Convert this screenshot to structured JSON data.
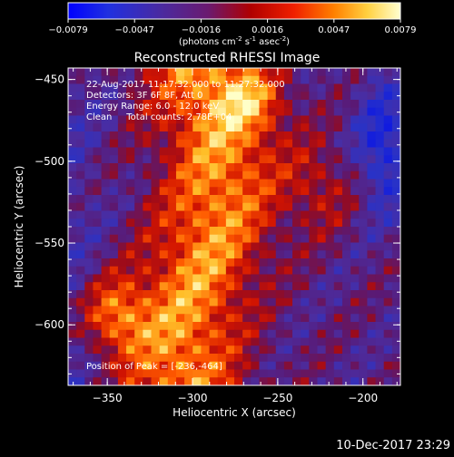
{
  "colorbar": {
    "ticks": [
      "-0.0079",
      "-0.0047",
      "-0.0016",
      "0.0016",
      "0.0047",
      "0.0079"
    ],
    "unit_main": "(photons cm",
    "unit_sup1": "-2",
    "unit_mid1": " s",
    "unit_sup2": "-1",
    "unit_mid2": " asec",
    "unit_sup3": "-2",
    "unit_end": ")"
  },
  "info": {
    "time": "22-Aug-2017 11:17:32.000 to 11:27:32.000",
    "detectors": "Detectors: 3F 6F 8F, Att 0",
    "energy": "Energy Range: 6.0 - 12.0 keV",
    "method_counts": "Clean     Total counts: 2.78E+04",
    "peak": "Position of Peak = [-236,-464]"
  },
  "footer": {
    "timestamp": "10-Dec-2017 23:29"
  },
  "colors": {
    "background": "#000000",
    "image_low": "#1a3ac8",
    "image_mid": "#5a1870",
    "image_high": "#ffe060"
  },
  "chart_data": {
    "type": "heatmap",
    "title": "Reconstructed RHESSI Image",
    "xlabel": "Heliocentric X (arcsec)",
    "ylabel": "Heliocentric Y (arcsec)",
    "xlim": [
      -373,
      -178
    ],
    "ylim": [
      -637,
      -443
    ],
    "x_ticks": [
      -350,
      -300,
      -250,
      -200
    ],
    "y_ticks": [
      -450,
      -500,
      -550,
      -600
    ],
    "x_tick_labels": [
      "−350",
      "−300",
      "−250",
      "−200"
    ],
    "y_tick_labels": [
      "−450",
      "−500",
      "−550",
      "−600"
    ],
    "value_range": [
      -0.0079,
      0.0079
    ],
    "peak": [
      -236,
      -464
    ],
    "colormap": "rhessi (blue-purple-red-orange-yellow-white)"
  }
}
